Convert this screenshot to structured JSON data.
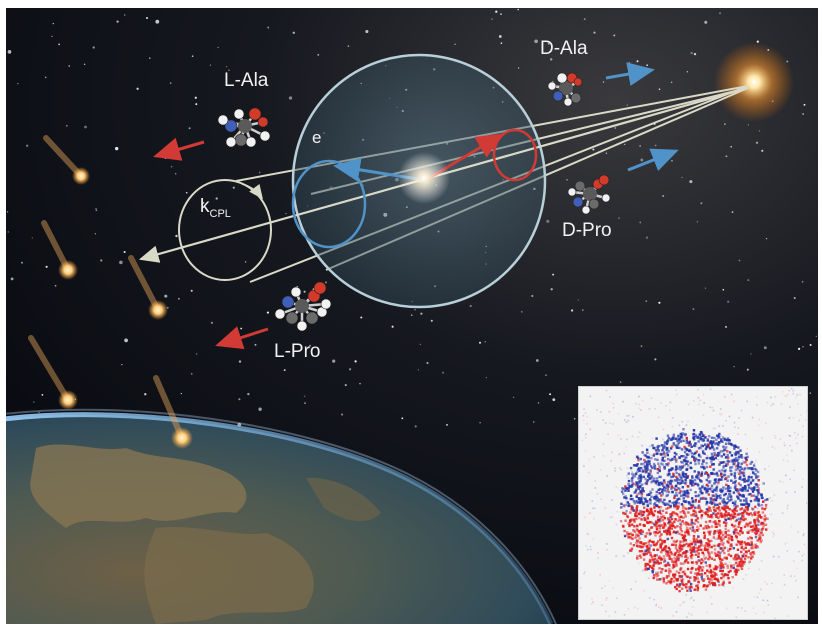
{
  "labels": {
    "l_ala": "L-Ala",
    "d_ala": "D-Ala",
    "d_pro": "D-Pro",
    "l_pro": "L-Pro",
    "electron": "e",
    "wavevector_k": "k",
    "wavevector_sub": "CPL"
  },
  "colors": {
    "space_dark": "#0a0d14",
    "glow": "#ffe9b0",
    "arrow_blue": "#4f93c8",
    "arrow_red": "#d13a35",
    "sphere": "#a9c4cf",
    "inset_blue": "#2536a8",
    "inset_red": "#e21d1d"
  }
}
